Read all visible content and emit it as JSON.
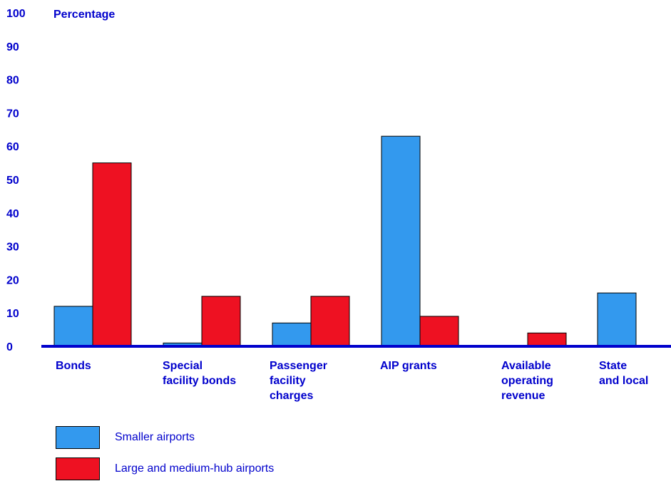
{
  "chart_data": {
    "type": "bar",
    "ylabel": "Percentage",
    "ylim": [
      0,
      100
    ],
    "yticks": [
      "0",
      "10",
      "20",
      "30",
      "40",
      "50",
      "60",
      "70",
      "80",
      "90",
      "100"
    ],
    "categories": [
      "Bonds",
      "Special\nfacility bonds",
      "Passenger\nfacility\ncharges",
      "AIP grants",
      "Available\noperating\nrevenue",
      "State\nand local"
    ],
    "series": [
      {
        "name": "Smaller airports",
        "color": "#3399ee",
        "values": [
          12,
          1,
          7,
          63,
          0,
          16
        ]
      },
      {
        "name": "Large and medium-hub airports",
        "color": "#ee1122",
        "values": [
          55,
          15,
          15,
          9,
          4,
          0
        ]
      }
    ],
    "grid": false,
    "legend_position": "bottom-left"
  },
  "colors": {
    "text": "#0000cc",
    "axis": "#0000cc"
  }
}
